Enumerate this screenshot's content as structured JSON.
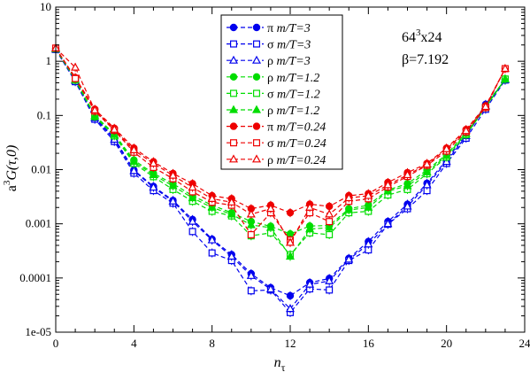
{
  "chart_data": {
    "type": "line",
    "xlabel": "n",
    "xlabel_sub": "τ",
    "ylabel_prefix": "a",
    "ylabel_sup": "3",
    "ylabel_main": "G(τ,0)",
    "xlim": [
      0,
      24
    ],
    "ylim": [
      1e-05,
      10
    ],
    "yscale": "log",
    "x_ticks": [
      0,
      4,
      8,
      12,
      16,
      20,
      24
    ],
    "x_tick_labels": [
      "0",
      "4",
      "8",
      "12",
      "16",
      "20",
      "24"
    ],
    "y_ticks": [
      1e-05,
      0.0001,
      0.001,
      0.01,
      0.1,
      1,
      10
    ],
    "y_tick_labels": [
      "1e-05",
      "0.0001",
      "0.001",
      "0.01",
      "0.1",
      "1",
      "10"
    ],
    "legend_position": "top-center",
    "annotations": [
      {
        "pre": "64",
        "sup": "3",
        "post": "x24"
      },
      {
        "pre": "β=7.192",
        "sup": "",
        "post": ""
      }
    ],
    "x": [
      0,
      1,
      2,
      3,
      4,
      5,
      6,
      7,
      8,
      9,
      10,
      11,
      12,
      13,
      14,
      15,
      16,
      17,
      18,
      19,
      20,
      21,
      22,
      23
    ],
    "series": [
      {
        "name": "π",
        "mt": "m/T=3",
        "color": "#0000ee",
        "marker": "circle",
        "filled": true,
        "values": [
          1.65,
          0.45,
          0.093,
          0.038,
          0.0098,
          0.0049,
          0.0027,
          0.0012,
          0.00052,
          0.00027,
          0.00012,
          6.6e-05,
          4.7e-05,
          8.2e-05,
          9.8e-05,
          0.00023,
          0.00047,
          0.0011,
          0.0023,
          0.0056,
          0.015,
          0.045,
          0.16,
          0.45
        ]
      },
      {
        "name": "σ",
        "mt": "m/T=3",
        "color": "#0000ee",
        "marker": "square",
        "filled": false,
        "values": [
          1.65,
          0.42,
          0.085,
          0.033,
          0.0086,
          0.0041,
          0.0024,
          0.00072,
          0.00029,
          0.00021,
          5.8e-05,
          6e-05,
          2.3e-05,
          6.3e-05,
          6e-05,
          0.00021,
          0.00033,
          0.00098,
          0.0019,
          0.0041,
          0.013,
          0.038,
          0.13,
          0.45
        ]
      },
      {
        "name": "ρ",
        "mt": "m/T=3",
        "color": "#0000ee",
        "marker": "triangle",
        "filled": false,
        "values": [
          1.65,
          0.44,
          0.09,
          0.036,
          0.0095,
          0.0047,
          0.0026,
          0.0011,
          0.0005,
          0.00025,
          0.00011,
          6.2e-05,
          2.7e-05,
          7.6e-05,
          8.8e-05,
          0.00022,
          0.00042,
          0.001,
          0.0021,
          0.0052,
          0.014,
          0.042,
          0.15,
          0.45
        ]
      },
      {
        "name": "ρ",
        "mt": "m/T=1.2",
        "color": "#00dd00",
        "marker": "circle",
        "filled": true,
        "values": [
          1.7,
          0.47,
          0.1,
          0.045,
          0.015,
          0.0085,
          0.0055,
          0.0033,
          0.0022,
          0.0016,
          0.0011,
          0.0009,
          0.00065,
          0.00091,
          0.00093,
          0.0019,
          0.0022,
          0.0042,
          0.0055,
          0.0098,
          0.019,
          0.048,
          0.15,
          0.47
        ]
      },
      {
        "name": "σ",
        "mt": "m/T=1.2",
        "color": "#00dd00",
        "marker": "square",
        "filled": false,
        "values": [
          1.7,
          0.45,
          0.095,
          0.042,
          0.013,
          0.0074,
          0.0043,
          0.0026,
          0.0017,
          0.0014,
          0.0006,
          0.00068,
          0.00027,
          0.00068,
          0.00063,
          0.0016,
          0.0017,
          0.0034,
          0.0043,
          0.0084,
          0.017,
          0.044,
          0.14,
          0.47
        ]
      },
      {
        "name": "ρ",
        "mt": "m/T=1.2",
        "color": "#00dd00",
        "marker": "triangle",
        "filled": true,
        "values": [
          1.7,
          0.46,
          0.098,
          0.044,
          0.014,
          0.008,
          0.005,
          0.003,
          0.002,
          0.0015,
          0.00095,
          0.00085,
          0.00025,
          0.0008,
          0.00085,
          0.0018,
          0.002,
          0.004,
          0.005,
          0.009,
          0.018,
          0.046,
          0.145,
          0.47
        ]
      },
      {
        "name": "π",
        "mt": "m/T=0.24",
        "color": "#ee0000",
        "marker": "circle",
        "filled": true,
        "values": [
          1.75,
          0.5,
          0.13,
          0.058,
          0.025,
          0.014,
          0.0085,
          0.0055,
          0.0033,
          0.0029,
          0.0019,
          0.0022,
          0.0016,
          0.0023,
          0.0021,
          0.0033,
          0.0036,
          0.0058,
          0.0088,
          0.013,
          0.025,
          0.055,
          0.15,
          0.73
        ]
      },
      {
        "name": "σ",
        "mt": "m/T=0.24",
        "color": "#ee0000",
        "marker": "square",
        "filled": false,
        "values": [
          1.75,
          0.48,
          0.12,
          0.053,
          0.021,
          0.011,
          0.0068,
          0.0039,
          0.0025,
          0.0022,
          0.00063,
          0.0016,
          0.0005,
          0.0016,
          0.0011,
          0.0026,
          0.0029,
          0.0048,
          0.0075,
          0.012,
          0.022,
          0.05,
          0.14,
          0.73
        ]
      },
      {
        "name": "ρ",
        "mt": "m/T=0.24",
        "color": "#ee0000",
        "marker": "triangle",
        "filled": false,
        "values": [
          1.75,
          0.77,
          0.125,
          0.055,
          0.023,
          0.013,
          0.0078,
          0.0047,
          0.0029,
          0.0025,
          0.0015,
          0.0019,
          0.00045,
          0.002,
          0.0015,
          0.003,
          0.0033,
          0.0052,
          0.008,
          0.0125,
          0.024,
          0.052,
          0.145,
          0.73
        ]
      }
    ]
  }
}
